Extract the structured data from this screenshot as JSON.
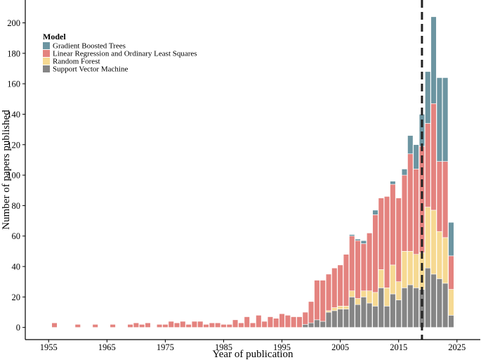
{
  "chart_data": {
    "type": "bar",
    "stacked": true,
    "title": "",
    "xlabel": "Year of publication",
    "ylabel": "Number of papers published",
    "xlim": [
      1951,
      2029
    ],
    "ylim": [
      -8,
      215
    ],
    "xticks": [
      1955,
      1965,
      1975,
      1985,
      1995,
      2005,
      2015,
      2025
    ],
    "yticks": [
      0,
      20,
      40,
      60,
      80,
      100,
      120,
      140,
      160,
      180,
      200
    ],
    "reference_line": {
      "x": 2019,
      "style": "dashed",
      "color": "#222222"
    },
    "legend": {
      "title": "Model",
      "position": "top-left",
      "entries": [
        "Gradient Boosted Trees",
        "Linear Regression and Ordinary Least Squares",
        "Random Forest",
        "Support Vector Machine"
      ]
    },
    "colors": {
      "Support Vector Machine": "#858585",
      "Random Forest": "#f6d992",
      "Linear Regression and Ordinary Least Squares": "#e4837f",
      "Gradient Boosted Trees": "#6c95a1"
    },
    "stack_order": [
      "Support Vector Machine",
      "Random Forest",
      "Linear Regression and Ordinary Least Squares",
      "Gradient Boosted Trees"
    ],
    "x": [
      1956,
      1960,
      1963,
      1966,
      1969,
      1970,
      1971,
      1972,
      1974,
      1975,
      1976,
      1977,
      1978,
      1979,
      1980,
      1981,
      1982,
      1983,
      1984,
      1985,
      1986,
      1987,
      1988,
      1989,
      1990,
      1991,
      1992,
      1993,
      1994,
      1995,
      1996,
      1997,
      1998,
      1999,
      2000,
      2001,
      2002,
      2003,
      2004,
      2005,
      2006,
      2007,
      2008,
      2009,
      2010,
      2011,
      2012,
      2013,
      2014,
      2015,
      2016,
      2017,
      2018,
      2019,
      2020,
      2021,
      2022,
      2023,
      2024
    ],
    "series": [
      {
        "name": "Support Vector Machine",
        "values": [
          0,
          0,
          0,
          0,
          0,
          0,
          0,
          0,
          0,
          0,
          0,
          0,
          0,
          0,
          0,
          0,
          0,
          0,
          0,
          0,
          0,
          0,
          0,
          0,
          0,
          0,
          0,
          0,
          0,
          0,
          0,
          0,
          0,
          2,
          3,
          5,
          4,
          10,
          11,
          12,
          12,
          20,
          15,
          20,
          16,
          14,
          26,
          14,
          22,
          18,
          26,
          28,
          26,
          25,
          39,
          35,
          32,
          29,
          8
        ]
      },
      {
        "name": "Random Forest",
        "values": [
          0,
          0,
          0,
          0,
          0,
          0,
          0,
          0,
          0,
          0,
          0,
          0,
          0,
          0,
          0,
          0,
          0,
          0,
          0,
          0,
          0,
          0,
          0,
          0,
          0,
          0,
          0,
          0,
          0,
          0,
          0,
          0,
          0,
          0,
          0,
          0,
          0,
          1,
          2,
          2,
          2,
          4,
          4,
          4,
          8,
          9,
          12,
          12,
          19,
          12,
          24,
          22,
          22,
          24,
          40,
          42,
          31,
          30,
          17
        ]
      },
      {
        "name": "Linear Regression and Ordinary Least Squares",
        "values": [
          3,
          2,
          2,
          2,
          2,
          3,
          2,
          3,
          2,
          2,
          4,
          3,
          4,
          2,
          4,
          4,
          2,
          3,
          3,
          2,
          2,
          5,
          3,
          7,
          3,
          8,
          4,
          7,
          6,
          9,
          8,
          7,
          7,
          8,
          14,
          26,
          27,
          24,
          26,
          27,
          34,
          36,
          38,
          31,
          38,
          51,
          47,
          60,
          53,
          55,
          50,
          64,
          56,
          70,
          55,
          70,
          46,
          50,
          22
        ]
      },
      {
        "name": "Gradient Boosted Trees",
        "values": [
          0,
          0,
          0,
          0,
          0,
          0,
          0,
          0,
          0,
          0,
          0,
          0,
          0,
          0,
          0,
          0,
          0,
          0,
          0,
          0,
          0,
          0,
          0,
          0,
          0,
          0,
          0,
          0,
          0,
          0,
          0,
          0,
          0,
          0,
          0,
          0,
          0,
          0,
          0,
          0,
          0,
          1,
          1,
          2,
          0,
          3,
          0,
          0,
          2,
          0,
          4,
          12,
          16,
          21,
          34,
          57,
          55,
          55,
          22
        ]
      }
    ]
  }
}
